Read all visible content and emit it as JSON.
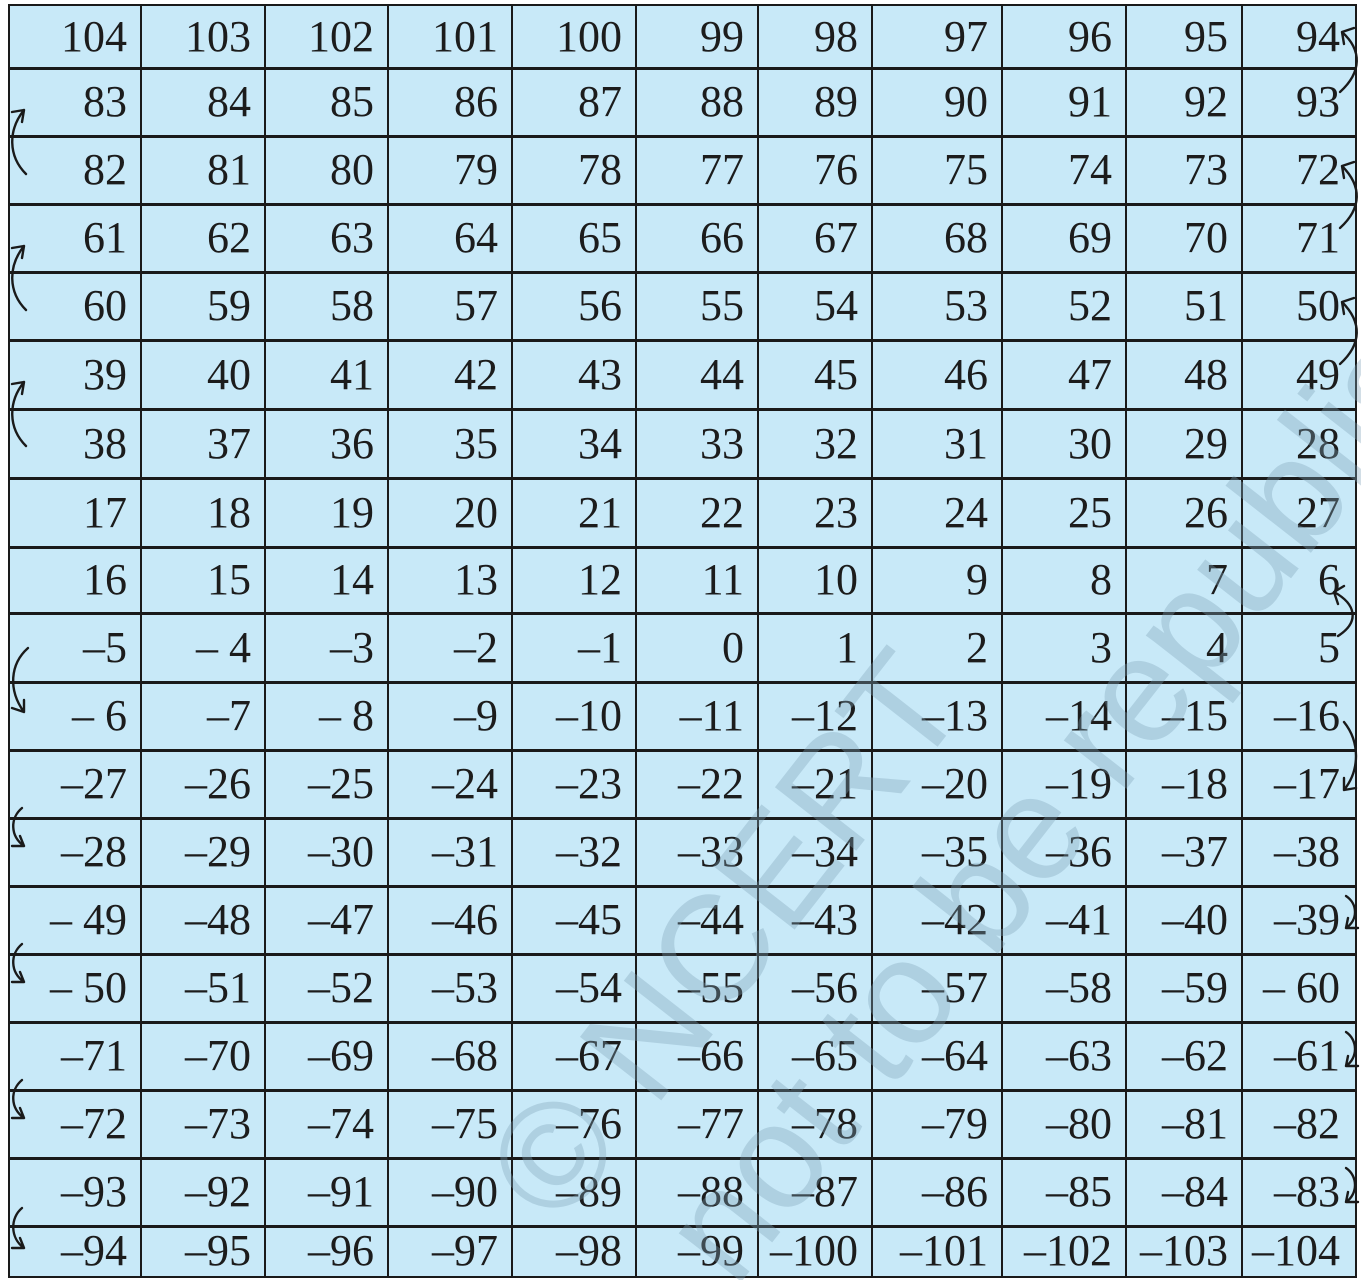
{
  "board": {
    "rows": [
      [
        "104",
        "103",
        "102",
        "101",
        "100",
        "99",
        "98",
        "97",
        "96",
        "95",
        "94"
      ],
      [
        "83",
        "84",
        "85",
        "86",
        "87",
        "88",
        "89",
        "90",
        "91",
        "92",
        "93"
      ],
      [
        "82",
        "81",
        "80",
        "79",
        "78",
        "77",
        "76",
        "75",
        "74",
        "73",
        "72"
      ],
      [
        "61",
        "62",
        "63",
        "64",
        "65",
        "66",
        "67",
        "68",
        "69",
        "70",
        "71"
      ],
      [
        "60",
        "59",
        "58",
        "57",
        "56",
        "55",
        "54",
        "53",
        "52",
        "51",
        "50"
      ],
      [
        "39",
        "40",
        "41",
        "42",
        "43",
        "44",
        "45",
        "46",
        "47",
        "48",
        "49"
      ],
      [
        "38",
        "37",
        "36",
        "35",
        "34",
        "33",
        "32",
        "31",
        "30",
        "29",
        "28"
      ],
      [
        "17",
        "18",
        "19",
        "20",
        "21",
        "22",
        "23",
        "24",
        "25",
        "26",
        "27"
      ],
      [
        "16",
        "15",
        "14",
        "13",
        "12",
        "11",
        "10",
        "9",
        "8",
        "7",
        "6"
      ],
      [
        "–5",
        "– 4",
        "–3",
        "–2",
        "–1",
        "0",
        "1",
        "2",
        "3",
        "4",
        "5"
      ],
      [
        "– 6",
        "–7",
        "– 8",
        "–9",
        "–10",
        "–11",
        "–12",
        "–13",
        "–14",
        "–15",
        "–16"
      ],
      [
        "–27",
        "–26",
        "–25",
        "–24",
        "–23",
        "–22",
        "–21",
        "–20",
        "–19",
        "–18",
        "–17"
      ],
      [
        "–28",
        "–29",
        "–30",
        "–31",
        "–32",
        "–33",
        "–34",
        "–35",
        "–36",
        "–37",
        "–38"
      ],
      [
        "– 49",
        "–48",
        "–47",
        "–46",
        "–45",
        "–44",
        "–43",
        "–42",
        "–41",
        "–40",
        "–39"
      ],
      [
        "– 50",
        "–51",
        "–52",
        "–53",
        "–54",
        "–55",
        "–56",
        "–57",
        "–58",
        "–59",
        "– 60"
      ],
      [
        "–71",
        "–70",
        "–69",
        "–68",
        "–67",
        "–66",
        "–65",
        "–64",
        "–63",
        "–62",
        "–61"
      ],
      [
        "–72",
        "–73",
        "–74",
        "–75",
        "–76",
        "–77",
        "–78",
        "–79",
        "–80",
        "–81",
        "–82"
      ],
      [
        "–93",
        "–92",
        "–91",
        "–90",
        "–89",
        "–88",
        "–87",
        "–86",
        "–85",
        "–84",
        "–83"
      ],
      [
        "–94",
        "–95",
        "–96",
        "–97",
        "–98",
        "–99",
        "–100",
        "–101",
        "–102",
        "–103",
        "–104"
      ]
    ],
    "colors": {
      "cell_fill": "#c8e9f8",
      "grid_line": "#1a1a1a",
      "text": "#1c1c1c",
      "watermark": "#7fa3b8"
    }
  },
  "watermark": {
    "line1": "© NCERT",
    "line2": "not to be republished"
  }
}
